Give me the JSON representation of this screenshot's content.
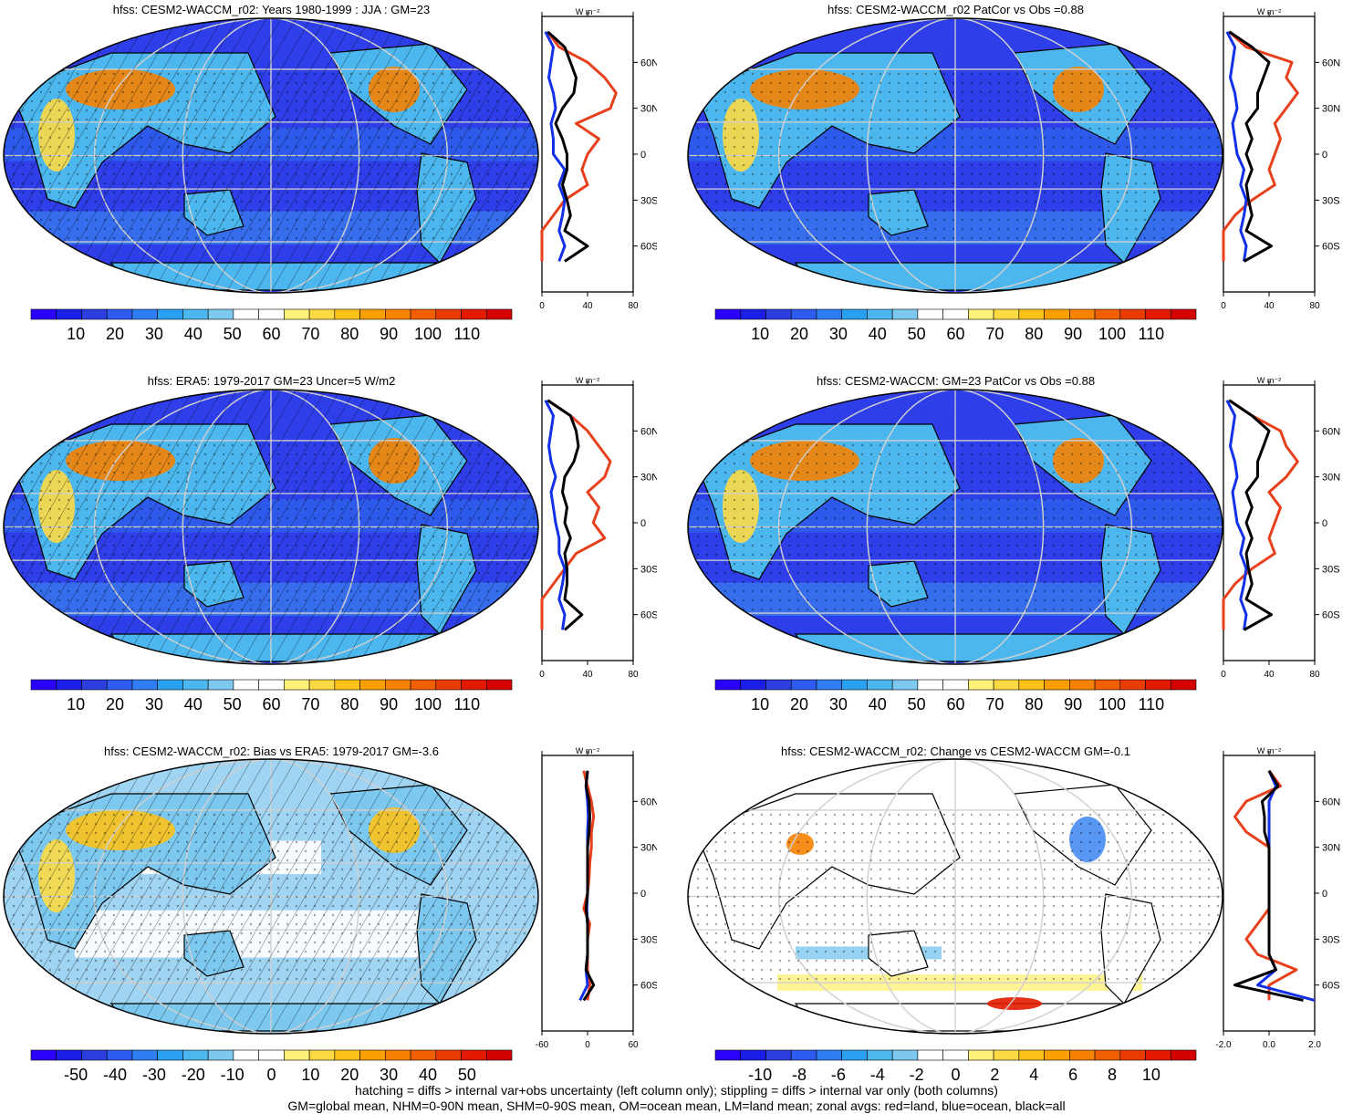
{
  "panels": [
    {
      "title": "hfss: CESM2-WACCM_r02: Years 1980-1999 : JJA : GM=23",
      "colorbar": {
        "labels": [
          "10",
          "20",
          "30",
          "40",
          "50",
          "60",
          "70",
          "80",
          "90",
          "100",
          "110"
        ]
      },
      "zonal": {
        "unit": "W m⁻²",
        "xticks": [
          "0",
          "40",
          "80"
        ],
        "xlim": [
          0,
          80
        ]
      },
      "hatched": true
    },
    {
      "title": "hfss: CESM2-WACCM_r02 PatCor vs Obs =0.88",
      "colorbar": {
        "labels": [
          "10",
          "20",
          "30",
          "40",
          "50",
          "60",
          "70",
          "80",
          "90",
          "100",
          "110"
        ]
      },
      "zonal": {
        "unit": "W m⁻²",
        "xticks": [
          "0",
          "40",
          "80"
        ],
        "xlim": [
          0,
          80
        ]
      },
      "hatched": false
    },
    {
      "title": "hfss: ERA5: 1979-2017 GM=23 Uncer=5 W/m2",
      "colorbar": {
        "labels": [
          "10",
          "20",
          "30",
          "40",
          "50",
          "60",
          "70",
          "80",
          "90",
          "100",
          "110"
        ]
      },
      "zonal": {
        "unit": "W m⁻²",
        "xticks": [
          "0",
          "40",
          "80"
        ],
        "xlim": [
          0,
          80
        ]
      },
      "hatched": true
    },
    {
      "title": "hfss: CESM2-WACCM: GM=23 PatCor vs Obs =0.88",
      "colorbar": {
        "labels": [
          "10",
          "20",
          "30",
          "40",
          "50",
          "60",
          "70",
          "80",
          "90",
          "100",
          "110"
        ]
      },
      "zonal": {
        "unit": "W m⁻²",
        "xticks": [
          "0",
          "40",
          "80"
        ],
        "xlim": [
          0,
          80
        ]
      },
      "hatched": false
    },
    {
      "title": "hfss: CESM2-WACCM_r02: Bias vs ERA5: 1979-2017 GM=-3.6",
      "colorbar": {
        "labels": [
          "-50",
          "-40",
          "-30",
          "-20",
          "-10",
          "0",
          "10",
          "20",
          "30",
          "40",
          "50"
        ]
      },
      "zonal": {
        "unit": "W m⁻²",
        "xticks": [
          "-60",
          "0",
          "60"
        ],
        "xlim": [
          -60,
          60
        ]
      },
      "hatched": true
    },
    {
      "title": "hfss: CESM2-WACCM_r02: Change vs CESM2-WACCM GM=-0.1",
      "colorbar": {
        "labels": [
          "-10",
          "-8",
          "-6",
          "-4",
          "-2",
          "0",
          "2",
          "4",
          "6",
          "8",
          "10"
        ]
      },
      "zonal": {
        "unit": "W m⁻²",
        "xticks": [
          "-2.0",
          "0.0",
          "2.0"
        ],
        "xlim": [
          -2,
          2
        ]
      },
      "hatched": false
    }
  ],
  "lat_labels": [
    "60N",
    "30N",
    "0",
    "30S",
    "60S"
  ],
  "colors": {
    "seq": [
      "#2b00ff",
      "#1a1ee6",
      "#2c3ee0",
      "#2e5cf0",
      "#2f7df2",
      "#2aa0f0",
      "#4cb7ee",
      "#7cc8ef",
      "#ffffff",
      "#ffffff",
      "#fff17a",
      "#fdda44",
      "#fcc21a",
      "#f9a000",
      "#f68200",
      "#f15f00",
      "#ea3c00",
      "#e31a00",
      "#d40000"
    ],
    "div": [
      "#2b00ff",
      "#1a1ee6",
      "#2c3ee0",
      "#2e5cf0",
      "#2f7df2",
      "#2aa0f0",
      "#4cb7ee",
      "#7cc8ef",
      "#ffffff",
      "#ffffff",
      "#fff17a",
      "#fdda44",
      "#fcc21a",
      "#f9a000",
      "#f68200",
      "#f15f00",
      "#ea3c00",
      "#e31a00",
      "#d40000"
    ],
    "land": "#e8401c",
    "ocean": "#1230e8",
    "all": "#000000"
  },
  "chart_data": [
    {
      "type": "line",
      "panel": "CESM2-WACCM_r02 JJA zonal avg",
      "y_lat": [
        80,
        70,
        60,
        50,
        40,
        30,
        20,
        10,
        0,
        -10,
        -20,
        -30,
        -40,
        -50,
        -60,
        -70
      ],
      "series": [
        {
          "name": "land",
          "values": [
            5,
            15,
            40,
            55,
            65,
            60,
            30,
            50,
            40,
            35,
            40,
            20,
            10,
            0,
            0,
            0
          ]
        },
        {
          "name": "ocean",
          "values": [
            3,
            10,
            8,
            6,
            10,
            12,
            8,
            10,
            10,
            20,
            15,
            20,
            18,
            15,
            20,
            15
          ]
        },
        {
          "name": "all",
          "values": [
            5,
            20,
            25,
            30,
            28,
            18,
            12,
            18,
            22,
            22,
            18,
            22,
            25,
            20,
            40,
            20
          ]
        }
      ],
      "xlim": [
        0,
        80
      ]
    },
    {
      "type": "line",
      "panel": "CESM2-WACCM PatCor zonal avg",
      "y_lat": [
        80,
        70,
        60,
        50,
        40,
        30,
        20,
        10,
        0,
        -10,
        -20,
        -30,
        -40,
        -50,
        -60,
        -70
      ],
      "series": [
        {
          "name": "land",
          "values": [
            5,
            20,
            60,
            55,
            65,
            55,
            45,
            50,
            45,
            40,
            45,
            25,
            10,
            0,
            0,
            0
          ]
        },
        {
          "name": "ocean",
          "values": [
            3,
            10,
            8,
            6,
            10,
            12,
            8,
            10,
            12,
            18,
            15,
            20,
            18,
            15,
            20,
            18
          ]
        },
        {
          "name": "all",
          "values": [
            5,
            25,
            40,
            35,
            30,
            30,
            20,
            25,
            20,
            25,
            20,
            22,
            25,
            20,
            42,
            18
          ]
        }
      ],
      "xlim": [
        0,
        80
      ]
    },
    {
      "type": "line",
      "panel": "ERA5 zonal avg",
      "y_lat": [
        80,
        70,
        60,
        50,
        40,
        30,
        20,
        10,
        0,
        -10,
        -20,
        -30,
        -40,
        -50,
        -60,
        -70
      ],
      "series": [
        {
          "name": "land",
          "values": [
            5,
            25,
            40,
            50,
            60,
            55,
            40,
            50,
            45,
            55,
            30,
            20,
            10,
            0,
            0,
            0
          ]
        },
        {
          "name": "ocean",
          "values": [
            3,
            10,
            8,
            6,
            8,
            12,
            8,
            10,
            12,
            15,
            15,
            20,
            18,
            15,
            20,
            18
          ]
        },
        {
          "name": "all",
          "values": [
            5,
            25,
            30,
            32,
            28,
            20,
            18,
            22,
            20,
            25,
            20,
            22,
            22,
            20,
            35,
            20
          ]
        }
      ],
      "xlim": [
        0,
        80
      ]
    },
    {
      "type": "line",
      "panel": "CESM2-WACCM zonal avg",
      "y_lat": [
        80,
        70,
        60,
        50,
        40,
        30,
        20,
        10,
        0,
        -10,
        -20,
        -30,
        -40,
        -50,
        -60,
        -70
      ],
      "series": [
        {
          "name": "land",
          "values": [
            5,
            25,
            50,
            55,
            65,
            55,
            40,
            50,
            45,
            40,
            45,
            25,
            10,
            0,
            0,
            0
          ]
        },
        {
          "name": "ocean",
          "values": [
            3,
            10,
            8,
            6,
            10,
            12,
            8,
            10,
            12,
            18,
            15,
            20,
            18,
            15,
            20,
            18
          ]
        },
        {
          "name": "all",
          "values": [
            5,
            25,
            40,
            35,
            30,
            30,
            20,
            25,
            20,
            25,
            20,
            22,
            25,
            20,
            42,
            18
          ]
        }
      ],
      "xlim": [
        0,
        80
      ]
    },
    {
      "type": "line",
      "panel": "Bias vs ERA5 zonal avg",
      "y_lat": [
        80,
        70,
        60,
        50,
        40,
        30,
        20,
        10,
        0,
        -10,
        -20,
        -30,
        -40,
        -50,
        -60,
        -70
      ],
      "series": [
        {
          "name": "land",
          "values": [
            -5,
            0,
            5,
            8,
            5,
            5,
            3,
            2,
            0,
            -5,
            3,
            0,
            0,
            0,
            3,
            0
          ]
        },
        {
          "name": "ocean",
          "values": [
            0,
            -2,
            0,
            1,
            0,
            0,
            0,
            0,
            0,
            -1,
            0,
            0,
            0,
            -2,
            0,
            -10
          ]
        },
        {
          "name": "all",
          "values": [
            0,
            -2,
            2,
            3,
            2,
            0,
            0,
            0,
            0,
            -2,
            0,
            0,
            0,
            -2,
            8,
            -5
          ]
        }
      ],
      "xlim": [
        -60,
        60
      ]
    },
    {
      "type": "line",
      "panel": "Change vs CESM2-WACCM zonal avg",
      "y_lat": [
        80,
        70,
        60,
        50,
        40,
        30,
        20,
        10,
        0,
        -10,
        -20,
        -30,
        -40,
        -50,
        -60,
        -70
      ],
      "series": [
        {
          "name": "land",
          "values": [
            0,
            0.5,
            -1,
            -1.5,
            -1,
            0,
            0,
            0,
            0,
            0,
            -0.5,
            -1,
            -0.5,
            1.2,
            0,
            0
          ]
        },
        {
          "name": "ocean",
          "values": [
            0,
            0.3,
            0,
            0,
            0,
            0,
            0,
            0,
            0,
            0,
            0,
            0,
            0,
            0.3,
            -0.5,
            2
          ]
        },
        {
          "name": "all",
          "values": [
            0,
            0.4,
            -0.3,
            -0.2,
            -0.2,
            0,
            0,
            0,
            0,
            0,
            0,
            0,
            0,
            0.3,
            -1.5,
            1.5
          ]
        }
      ]
    }
  ],
  "footer": {
    "line1": "hatching = diffs > internal var+obs uncertainty (left column only); stippling = diffs > internal var only (both columns)",
    "line2": "GM=global mean, NHM=0-90N mean, SHM=0-90S mean, OM=ocean mean, LM=land mean; zonal avgs: red=land, blue=ocean, black=all"
  }
}
